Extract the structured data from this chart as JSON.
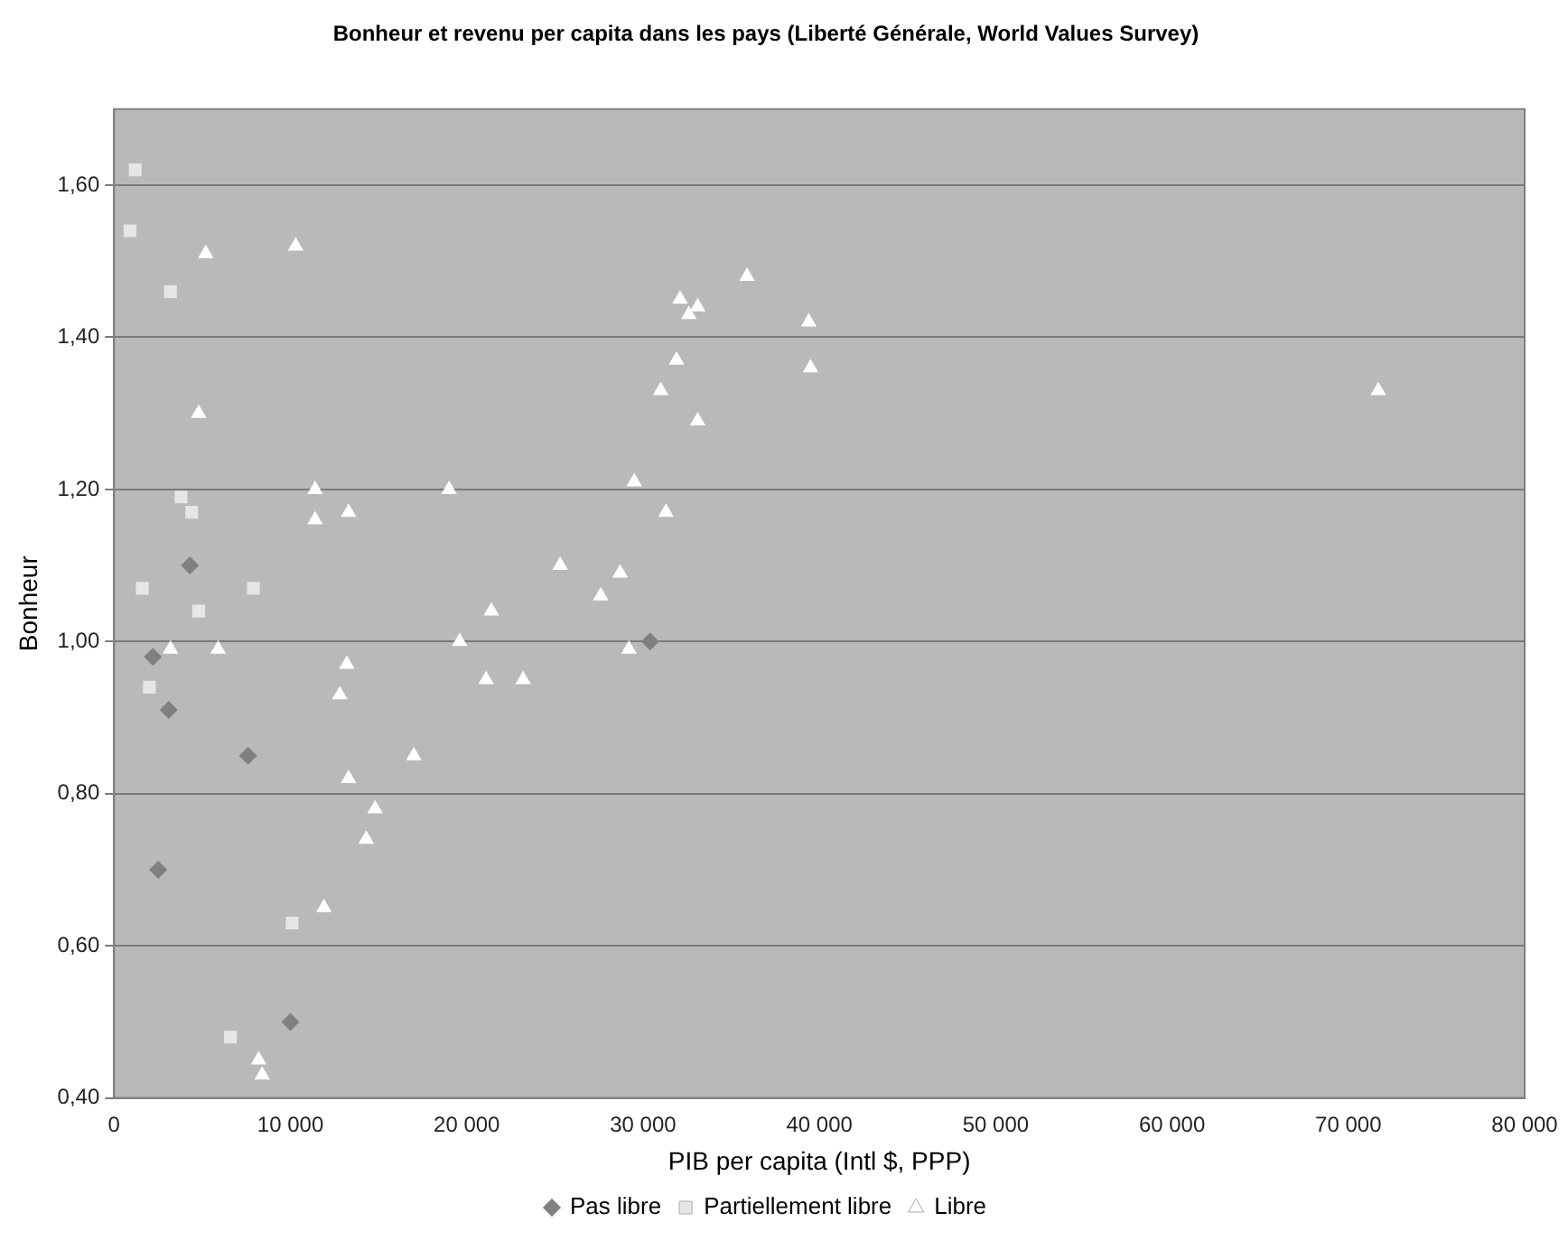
{
  "chart_data": {
    "type": "scatter",
    "title": "Bonheur et revenu per capita dans les pays (Liberté Générale, World Values Survey)",
    "xlabel": "PIB per capita (Intl $, PPP)",
    "ylabel": "Bonheur",
    "xlim": [
      0,
      80000
    ],
    "xticks": [
      0,
      {
        "value": 10000,
        "label": "10 000"
      },
      {
        "value": 20000,
        "label": "20 000"
      },
      {
        "value": 30000,
        "label": "30 000"
      },
      {
        "value": 40000,
        "label": "40 000"
      },
      {
        "value": 50000,
        "label": "50 000"
      },
      {
        "value": 60000,
        "label": "60 000"
      },
      {
        "value": 70000,
        "label": "70 000"
      },
      {
        "value": 80000,
        "label": "80 000"
      }
    ],
    "ylim": [
      0.4,
      1.7
    ],
    "yticks": [
      {
        "value": 0.4,
        "label": "0,40"
      },
      {
        "value": 0.6,
        "label": "0,60"
      },
      {
        "value": 0.8,
        "label": "0,80"
      },
      {
        "value": 1.0,
        "label": "1,00"
      },
      {
        "value": 1.2,
        "label": "1,20"
      },
      {
        "value": 1.4,
        "label": "1,40"
      },
      {
        "value": 1.6,
        "label": "1,60"
      }
    ],
    "grid": "y",
    "legend": "bottom",
    "series": [
      {
        "name": "Pas libre",
        "color": "#808080",
        "marker": "diamond",
        "x": [
          2200,
          4300,
          2500,
          3100,
          7600,
          10000,
          30400
        ],
        "values": [
          0.98,
          1.1,
          0.7,
          0.91,
          0.85,
          0.5,
          1.0
        ]
      },
      {
        "name": "Partiellement libre",
        "color": "#e6e6e6",
        "marker": "square",
        "x": [
          1200,
          900,
          3200,
          3800,
          4400,
          1600,
          7900,
          4800,
          2000,
          10100,
          6600
        ],
        "values": [
          1.62,
          1.54,
          1.46,
          1.19,
          1.17,
          1.07,
          1.07,
          1.04,
          0.94,
          0.63,
          0.48
        ]
      },
      {
        "name": "Libre",
        "color": "#ffffff",
        "marker": "triangle",
        "x": [
          5200,
          10300,
          4800,
          11400,
          11400,
          13300,
          3200,
          5900,
          13200,
          12800,
          17000,
          13300,
          14800,
          14300,
          11900,
          8200,
          8400,
          19000,
          35900,
          32100,
          33100,
          32600,
          39400,
          39500,
          31900,
          31000,
          33100,
          29500,
          31300,
          25300,
          28700,
          27600,
          21400,
          19600,
          21100,
          23200,
          29200,
          71700
        ],
        "values": [
          1.51,
          1.52,
          1.3,
          1.2,
          1.16,
          1.17,
          0.99,
          0.99,
          0.97,
          0.93,
          0.85,
          0.82,
          0.78,
          0.74,
          0.65,
          0.45,
          0.43,
          1.2,
          1.48,
          1.45,
          1.44,
          1.43,
          1.42,
          1.36,
          1.37,
          1.33,
          1.29,
          1.21,
          1.17,
          1.1,
          1.09,
          1.06,
          1.04,
          1.0,
          0.95,
          0.95,
          0.99,
          1.33
        ]
      }
    ]
  }
}
